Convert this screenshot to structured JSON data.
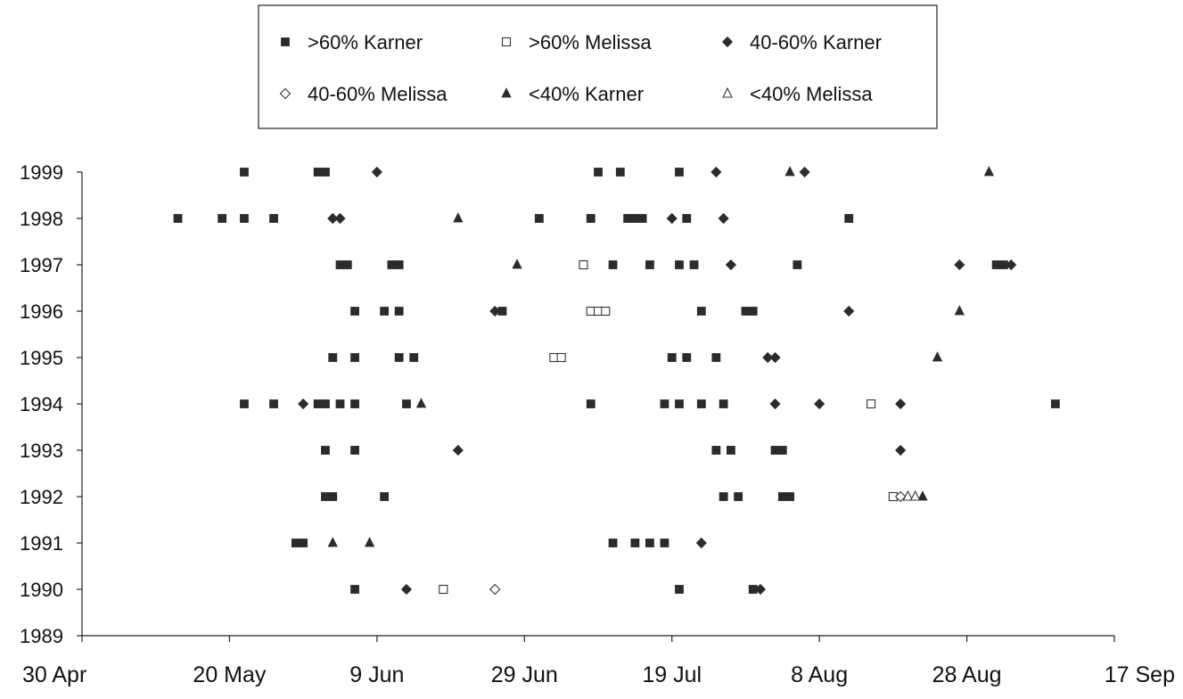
{
  "chart_data": {
    "type": "scatter",
    "title": "",
    "xlabel": "",
    "ylabel": "",
    "x_ticks": [
      "30 Apr",
      "20 May",
      "9 Jun",
      "29 Jun",
      "19 Jul",
      "8 Aug",
      "28 Aug",
      "17 Sep"
    ],
    "y_ticks": [
      "1989",
      "1990",
      "1991",
      "1992",
      "1993",
      "1994",
      "1995",
      "1996",
      "1997",
      "1998",
      "1999"
    ],
    "xlim": [
      "1900-04-30",
      "1900-09-17"
    ],
    "ylim": [
      1989,
      1999
    ],
    "grid": false,
    "legend_position": "top-center",
    "series": [
      {
        "name": ">60% Karner",
        "marker": "square-filled",
        "points": [
          {
            "x": "1900-05-13",
            "y": 1998
          },
          {
            "x": "1900-05-19",
            "y": 1998
          },
          {
            "x": "1900-05-22",
            "y": 1998
          },
          {
            "x": "1900-05-26",
            "y": 1998
          },
          {
            "x": "1900-07-01",
            "y": 1998
          },
          {
            "x": "1900-07-08",
            "y": 1998
          },
          {
            "x": "1900-07-13",
            "y": 1998
          },
          {
            "x": "1900-07-14",
            "y": 1998
          },
          {
            "x": "1900-07-15",
            "y": 1998
          },
          {
            "x": "1900-07-21",
            "y": 1998
          },
          {
            "x": "1900-08-12",
            "y": 1998
          },
          {
            "x": "1900-05-22",
            "y": 1999
          },
          {
            "x": "1900-06-01",
            "y": 1999
          },
          {
            "x": "1900-06-02",
            "y": 1999
          },
          {
            "x": "1900-07-09",
            "y": 1999
          },
          {
            "x": "1900-07-12",
            "y": 1999
          },
          {
            "x": "1900-07-20",
            "y": 1999
          },
          {
            "x": "1900-06-04",
            "y": 1997
          },
          {
            "x": "1900-06-05",
            "y": 1997
          },
          {
            "x": "1900-06-11",
            "y": 1997
          },
          {
            "x": "1900-06-12",
            "y": 1997
          },
          {
            "x": "1900-07-11",
            "y": 1997
          },
          {
            "x": "1900-07-16",
            "y": 1997
          },
          {
            "x": "1900-07-20",
            "y": 1997
          },
          {
            "x": "1900-07-22",
            "y": 1997
          },
          {
            "x": "1900-08-05",
            "y": 1997
          },
          {
            "x": "1900-09-01",
            "y": 1997
          },
          {
            "x": "1900-09-02",
            "y": 1997
          },
          {
            "x": "1900-06-06",
            "y": 1996
          },
          {
            "x": "1900-06-10",
            "y": 1996
          },
          {
            "x": "1900-06-12",
            "y": 1996
          },
          {
            "x": "1900-06-26",
            "y": 1996
          },
          {
            "x": "1900-07-23",
            "y": 1996
          },
          {
            "x": "1900-07-29",
            "y": 1996
          },
          {
            "x": "1900-07-30",
            "y": 1996
          },
          {
            "x": "1900-06-03",
            "y": 1995
          },
          {
            "x": "1900-06-06",
            "y": 1995
          },
          {
            "x": "1900-06-12",
            "y": 1995
          },
          {
            "x": "1900-06-14",
            "y": 1995
          },
          {
            "x": "1900-07-19",
            "y": 1995
          },
          {
            "x": "1900-07-21",
            "y": 1995
          },
          {
            "x": "1900-07-25",
            "y": 1995
          },
          {
            "x": "1900-05-22",
            "y": 1994
          },
          {
            "x": "1900-05-26",
            "y": 1994
          },
          {
            "x": "1900-06-01",
            "y": 1994
          },
          {
            "x": "1900-06-02",
            "y": 1994
          },
          {
            "x": "1900-06-04",
            "y": 1994
          },
          {
            "x": "1900-06-06",
            "y": 1994
          },
          {
            "x": "1900-06-13",
            "y": 1994
          },
          {
            "x": "1900-07-08",
            "y": 1994
          },
          {
            "x": "1900-07-18",
            "y": 1994
          },
          {
            "x": "1900-07-20",
            "y": 1994
          },
          {
            "x": "1900-07-23",
            "y": 1994
          },
          {
            "x": "1900-07-26",
            "y": 1994
          },
          {
            "x": "1900-09-09",
            "y": 1994
          },
          {
            "x": "1900-06-02",
            "y": 1993
          },
          {
            "x": "1900-06-06",
            "y": 1993
          },
          {
            "x": "1900-07-25",
            "y": 1993
          },
          {
            "x": "1900-07-27",
            "y": 1993
          },
          {
            "x": "1900-08-02",
            "y": 1993
          },
          {
            "x": "1900-08-03",
            "y": 1993
          },
          {
            "x": "1900-06-02",
            "y": 1992
          },
          {
            "x": "1900-06-03",
            "y": 1992
          },
          {
            "x": "1900-06-10",
            "y": 1992
          },
          {
            "x": "1900-07-26",
            "y": 1992
          },
          {
            "x": "1900-07-28",
            "y": 1992
          },
          {
            "x": "1900-08-03",
            "y": 1992
          },
          {
            "x": "1900-08-04",
            "y": 1992
          },
          {
            "x": "1900-05-29",
            "y": 1991
          },
          {
            "x": "1900-05-30",
            "y": 1991
          },
          {
            "x": "1900-07-11",
            "y": 1991
          },
          {
            "x": "1900-07-14",
            "y": 1991
          },
          {
            "x": "1900-07-16",
            "y": 1991
          },
          {
            "x": "1900-07-18",
            "y": 1991
          },
          {
            "x": "1900-06-06",
            "y": 1990
          },
          {
            "x": "1900-07-20",
            "y": 1990
          },
          {
            "x": "1900-07-30",
            "y": 1990
          }
        ]
      },
      {
        "name": ">60% Melissa",
        "marker": "square-open",
        "points": [
          {
            "x": "1900-07-07",
            "y": 1997
          },
          {
            "x": "1900-07-08",
            "y": 1996
          },
          {
            "x": "1900-07-09",
            "y": 1996
          },
          {
            "x": "1900-07-10",
            "y": 1996
          },
          {
            "x": "1900-07-03",
            "y": 1995
          },
          {
            "x": "1900-07-04",
            "y": 1995
          },
          {
            "x": "1900-08-15",
            "y": 1994
          },
          {
            "x": "1900-08-18",
            "y": 1992
          },
          {
            "x": "1900-06-18",
            "y": 1990
          }
        ]
      },
      {
        "name": "40-60% Karner",
        "marker": "diamond-filled",
        "points": [
          {
            "x": "1900-06-09",
            "y": 1999
          },
          {
            "x": "1900-07-25",
            "y": 1999
          },
          {
            "x": "1900-08-06",
            "y": 1999
          },
          {
            "x": "1900-06-03",
            "y": 1998
          },
          {
            "x": "1900-06-04",
            "y": 1998
          },
          {
            "x": "1900-07-19",
            "y": 1998
          },
          {
            "x": "1900-07-26",
            "y": 1998
          },
          {
            "x": "1900-07-27",
            "y": 1997
          },
          {
            "x": "1900-08-27",
            "y": 1997
          },
          {
            "x": "1900-09-03",
            "y": 1997
          },
          {
            "x": "1900-06-25",
            "y": 1996
          },
          {
            "x": "1900-08-12",
            "y": 1996
          },
          {
            "x": "1900-08-01",
            "y": 1995
          },
          {
            "x": "1900-08-02",
            "y": 1995
          },
          {
            "x": "1900-05-30",
            "y": 1994
          },
          {
            "x": "1900-08-02",
            "y": 1994
          },
          {
            "x": "1900-08-08",
            "y": 1994
          },
          {
            "x": "1900-08-19",
            "y": 1994
          },
          {
            "x": "1900-06-20",
            "y": 1993
          },
          {
            "x": "1900-08-19",
            "y": 1993
          },
          {
            "x": "1900-07-23",
            "y": 1991
          },
          {
            "x": "1900-06-13",
            "y": 1990
          },
          {
            "x": "1900-07-31",
            "y": 1990
          }
        ]
      },
      {
        "name": "40-60% Melissa",
        "marker": "diamond-open",
        "points": [
          {
            "x": "1900-08-19",
            "y": 1992
          },
          {
            "x": "1900-06-25",
            "y": 1990
          }
        ]
      },
      {
        "name": "<40% Karner",
        "marker": "triangle-filled",
        "points": [
          {
            "x": "1900-08-04",
            "y": 1999
          },
          {
            "x": "1900-08-31",
            "y": 1999
          },
          {
            "x": "1900-06-20",
            "y": 1998
          },
          {
            "x": "1900-06-28",
            "y": 1997
          },
          {
            "x": "1900-08-27",
            "y": 1996
          },
          {
            "x": "1900-08-24",
            "y": 1995
          },
          {
            "x": "1900-06-15",
            "y": 1994
          },
          {
            "x": "1900-08-22",
            "y": 1992
          },
          {
            "x": "1900-06-03",
            "y": 1991
          },
          {
            "x": "1900-06-08",
            "y": 1991
          }
        ]
      },
      {
        "name": "<40% Melissa",
        "marker": "triangle-open",
        "points": [
          {
            "x": "1900-08-20",
            "y": 1992
          },
          {
            "x": "1900-08-21",
            "y": 1992
          }
        ]
      }
    ]
  }
}
